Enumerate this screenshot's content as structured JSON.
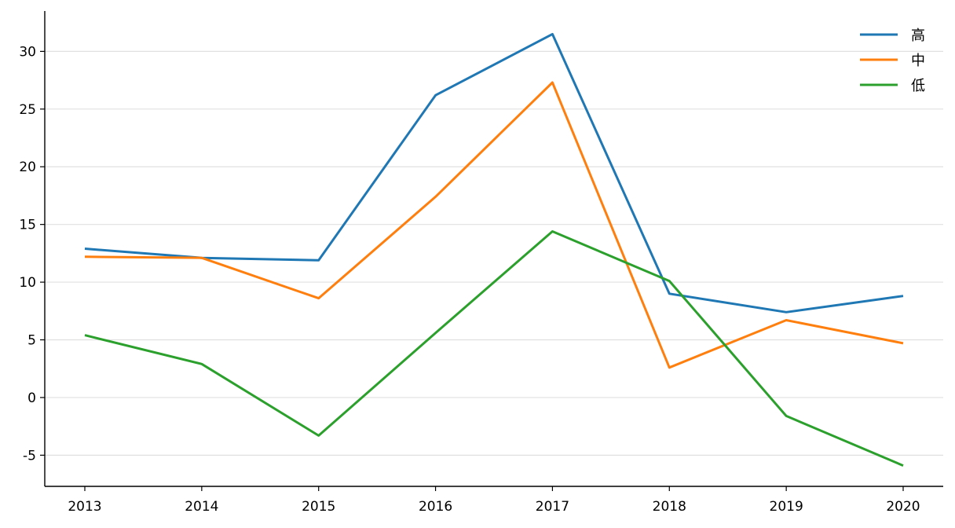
{
  "chart_data": {
    "type": "line",
    "title": "",
    "xlabel": "",
    "ylabel": "",
    "x": [
      "2013",
      "2014",
      "2015",
      "2016",
      "2017",
      "2018",
      "2019",
      "2020"
    ],
    "ylim": [
      -7.7,
      33.5
    ],
    "yticks": [
      -5,
      0,
      5,
      10,
      15,
      20,
      25,
      30
    ],
    "ytick_labels": [
      "-5",
      "0",
      "5",
      "10",
      "15",
      "20",
      "25",
      "30"
    ],
    "grid": "horizontal",
    "legend_position": "top-right",
    "series": [
      {
        "name": "高",
        "color": "#1f77b4",
        "values": [
          12.9,
          12.1,
          11.9,
          26.2,
          31.5,
          9.0,
          7.4,
          8.8
        ]
      },
      {
        "name": "中",
        "color": "#ff7f0e",
        "values": [
          12.2,
          12.1,
          8.6,
          17.4,
          27.3,
          2.6,
          6.7,
          4.7
        ]
      },
      {
        "name": "低",
        "color": "#2ca02c",
        "values": [
          5.4,
          2.9,
          -3.3,
          5.6,
          14.4,
          10.1,
          -1.6,
          -5.9
        ]
      }
    ]
  }
}
